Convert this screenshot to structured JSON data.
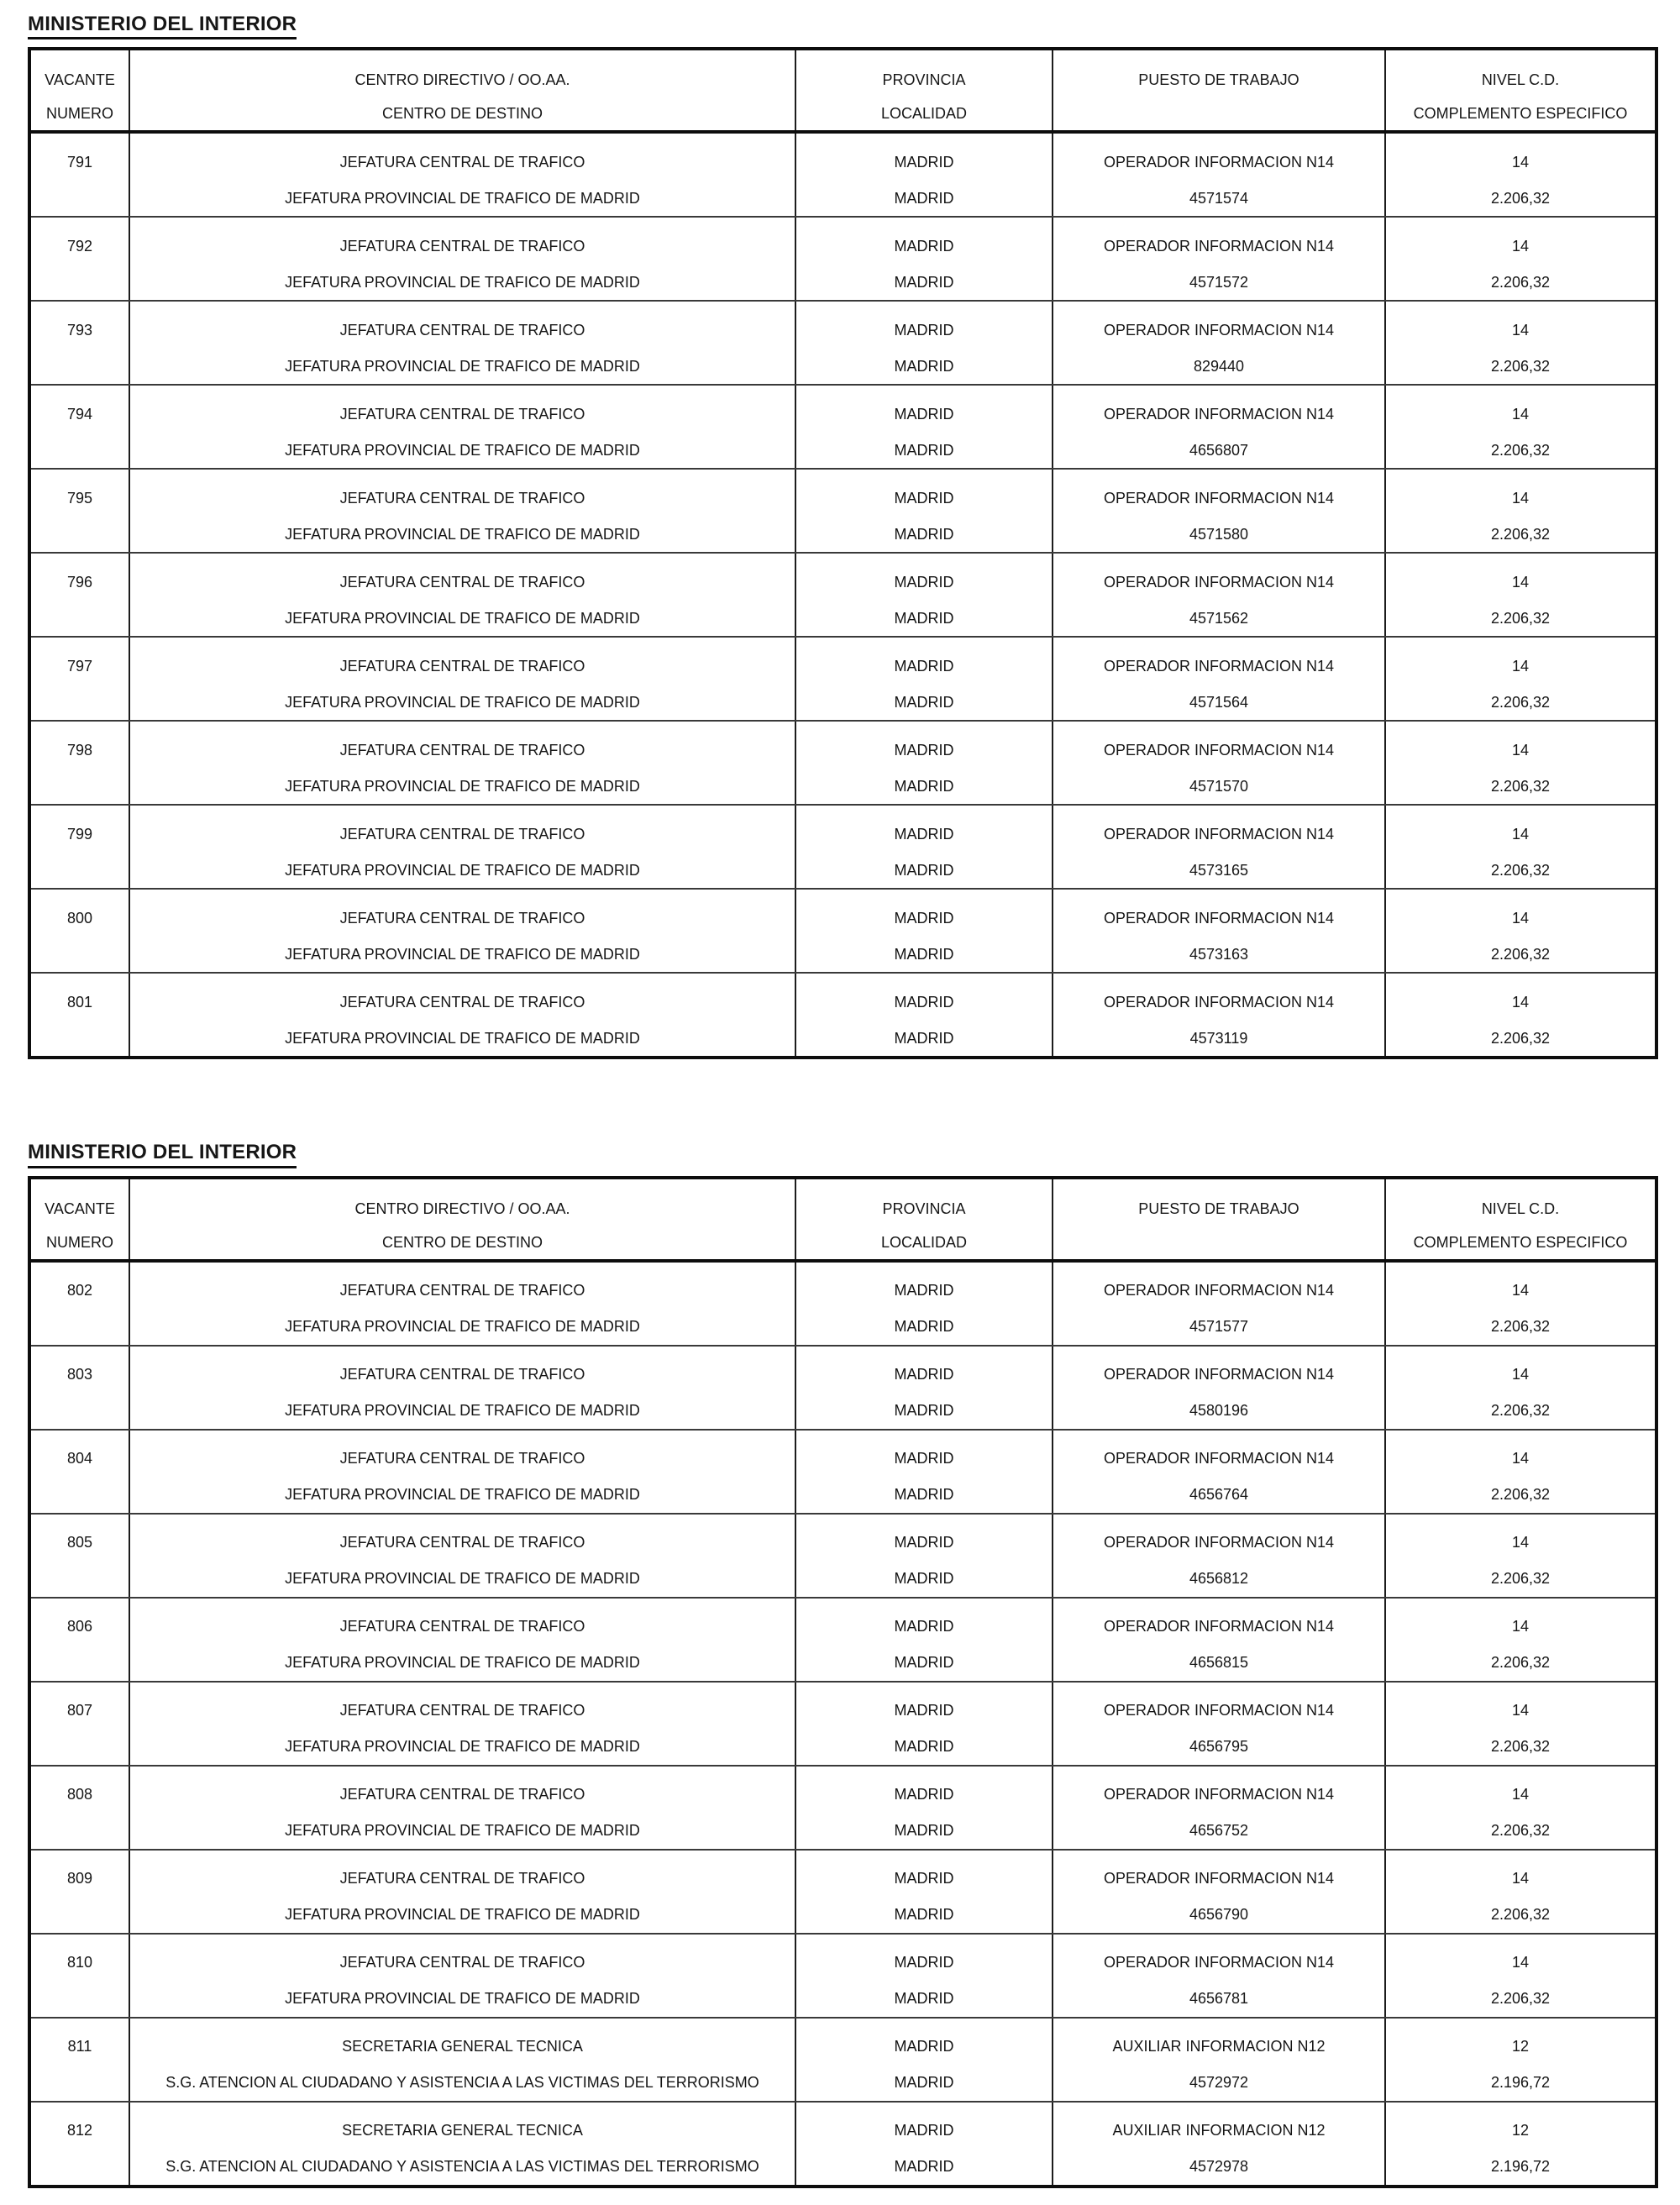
{
  "tables": [
    {
      "title": "MINISTERIO DEL INTERIOR",
      "headers": {
        "vacante_line1": "VACANTE",
        "vacante_line2": "NUMERO",
        "centro_line1": "CENTRO DIRECTIVO / OO.AA.",
        "centro_line2": "CENTRO DE DESTINO",
        "provincia_line1": "PROVINCIA",
        "provincia_line2": "LOCALIDAD",
        "puesto": "PUESTO DE TRABAJO",
        "nivel_line1": "NIVEL C.D.",
        "nivel_line2": "COMPLEMENTO ESPECIFICO"
      },
      "rows": [
        {
          "vacante": "791",
          "centro_directivo": "JEFATURA CENTRAL DE TRAFICO",
          "centro_destino": "JEFATURA PROVINCIAL DE TRAFICO DE MADRID",
          "provincia": "MADRID",
          "localidad": "MADRID",
          "puesto": "OPERADOR INFORMACION N14",
          "codigo": "4571574",
          "nivel": "14",
          "complemento": "2.206,32"
        },
        {
          "vacante": "792",
          "centro_directivo": "JEFATURA CENTRAL DE TRAFICO",
          "centro_destino": "JEFATURA PROVINCIAL DE TRAFICO DE MADRID",
          "provincia": "MADRID",
          "localidad": "MADRID",
          "puesto": "OPERADOR INFORMACION N14",
          "codigo": "4571572",
          "nivel": "14",
          "complemento": "2.206,32"
        },
        {
          "vacante": "793",
          "centro_directivo": "JEFATURA CENTRAL DE TRAFICO",
          "centro_destino": "JEFATURA PROVINCIAL DE TRAFICO DE MADRID",
          "provincia": "MADRID",
          "localidad": "MADRID",
          "puesto": "OPERADOR INFORMACION N14",
          "codigo": "829440",
          "nivel": "14",
          "complemento": "2.206,32"
        },
        {
          "vacante": "794",
          "centro_directivo": "JEFATURA CENTRAL DE TRAFICO",
          "centro_destino": "JEFATURA PROVINCIAL DE TRAFICO DE MADRID",
          "provincia": "MADRID",
          "localidad": "MADRID",
          "puesto": "OPERADOR INFORMACION N14",
          "codigo": "4656807",
          "nivel": "14",
          "complemento": "2.206,32"
        },
        {
          "vacante": "795",
          "centro_directivo": "JEFATURA CENTRAL DE TRAFICO",
          "centro_destino": "JEFATURA PROVINCIAL DE TRAFICO DE MADRID",
          "provincia": "MADRID",
          "localidad": "MADRID",
          "puesto": "OPERADOR INFORMACION N14",
          "codigo": "4571580",
          "nivel": "14",
          "complemento": "2.206,32"
        },
        {
          "vacante": "796",
          "centro_directivo": "JEFATURA CENTRAL DE TRAFICO",
          "centro_destino": "JEFATURA PROVINCIAL DE TRAFICO DE MADRID",
          "provincia": "MADRID",
          "localidad": "MADRID",
          "puesto": "OPERADOR INFORMACION N14",
          "codigo": "4571562",
          "nivel": "14",
          "complemento": "2.206,32"
        },
        {
          "vacante": "797",
          "centro_directivo": "JEFATURA CENTRAL DE TRAFICO",
          "centro_destino": "JEFATURA PROVINCIAL DE TRAFICO DE MADRID",
          "provincia": "MADRID",
          "localidad": "MADRID",
          "puesto": "OPERADOR INFORMACION N14",
          "codigo": "4571564",
          "nivel": "14",
          "complemento": "2.206,32"
        },
        {
          "vacante": "798",
          "centro_directivo": "JEFATURA CENTRAL DE TRAFICO",
          "centro_destino": "JEFATURA PROVINCIAL DE TRAFICO DE MADRID",
          "provincia": "MADRID",
          "localidad": "MADRID",
          "puesto": "OPERADOR INFORMACION N14",
          "codigo": "4571570",
          "nivel": "14",
          "complemento": "2.206,32"
        },
        {
          "vacante": "799",
          "centro_directivo": "JEFATURA CENTRAL DE TRAFICO",
          "centro_destino": "JEFATURA PROVINCIAL DE TRAFICO DE MADRID",
          "provincia": "MADRID",
          "localidad": "MADRID",
          "puesto": "OPERADOR INFORMACION N14",
          "codigo": "4573165",
          "nivel": "14",
          "complemento": "2.206,32"
        },
        {
          "vacante": "800",
          "centro_directivo": "JEFATURA CENTRAL DE TRAFICO",
          "centro_destino": "JEFATURA PROVINCIAL DE TRAFICO DE MADRID",
          "provincia": "MADRID",
          "localidad": "MADRID",
          "puesto": "OPERADOR INFORMACION N14",
          "codigo": "4573163",
          "nivel": "14",
          "complemento": "2.206,32"
        },
        {
          "vacante": "801",
          "centro_directivo": "JEFATURA CENTRAL DE TRAFICO",
          "centro_destino": "JEFATURA PROVINCIAL DE TRAFICO DE MADRID",
          "provincia": "MADRID",
          "localidad": "MADRID",
          "puesto": "OPERADOR INFORMACION N14",
          "codigo": "4573119",
          "nivel": "14",
          "complemento": "2.206,32"
        }
      ]
    },
    {
      "title": "MINISTERIO DEL INTERIOR",
      "headers": {
        "vacante_line1": "VACANTE",
        "vacante_line2": "NUMERO",
        "centro_line1": "CENTRO DIRECTIVO / OO.AA.",
        "centro_line2": "CENTRO DE DESTINO",
        "provincia_line1": "PROVINCIA",
        "provincia_line2": "LOCALIDAD",
        "puesto": "PUESTO DE TRABAJO",
        "nivel_line1": "NIVEL C.D.",
        "nivel_line2": "COMPLEMENTO ESPECIFICO"
      },
      "rows": [
        {
          "vacante": "802",
          "centro_directivo": "JEFATURA CENTRAL DE TRAFICO",
          "centro_destino": "JEFATURA PROVINCIAL DE TRAFICO DE MADRID",
          "provincia": "MADRID",
          "localidad": "MADRID",
          "puesto": "OPERADOR INFORMACION N14",
          "codigo": "4571577",
          "nivel": "14",
          "complemento": "2.206,32"
        },
        {
          "vacante": "803",
          "centro_directivo": "JEFATURA CENTRAL DE TRAFICO",
          "centro_destino": "JEFATURA PROVINCIAL DE TRAFICO DE MADRID",
          "provincia": "MADRID",
          "localidad": "MADRID",
          "puesto": "OPERADOR INFORMACION N14",
          "codigo": "4580196",
          "nivel": "14",
          "complemento": "2.206,32"
        },
        {
          "vacante": "804",
          "centro_directivo": "JEFATURA CENTRAL DE TRAFICO",
          "centro_destino": "JEFATURA PROVINCIAL DE TRAFICO DE MADRID",
          "provincia": "MADRID",
          "localidad": "MADRID",
          "puesto": "OPERADOR INFORMACION N14",
          "codigo": "4656764",
          "nivel": "14",
          "complemento": "2.206,32"
        },
        {
          "vacante": "805",
          "centro_directivo": "JEFATURA CENTRAL DE TRAFICO",
          "centro_destino": "JEFATURA PROVINCIAL DE TRAFICO DE MADRID",
          "provincia": "MADRID",
          "localidad": "MADRID",
          "puesto": "OPERADOR INFORMACION N14",
          "codigo": "4656812",
          "nivel": "14",
          "complemento": "2.206,32"
        },
        {
          "vacante": "806",
          "centro_directivo": "JEFATURA CENTRAL DE TRAFICO",
          "centro_destino": "JEFATURA PROVINCIAL DE TRAFICO DE MADRID",
          "provincia": "MADRID",
          "localidad": "MADRID",
          "puesto": "OPERADOR INFORMACION N14",
          "codigo": "4656815",
          "nivel": "14",
          "complemento": "2.206,32"
        },
        {
          "vacante": "807",
          "centro_directivo": "JEFATURA CENTRAL DE TRAFICO",
          "centro_destino": "JEFATURA PROVINCIAL DE TRAFICO DE MADRID",
          "provincia": "MADRID",
          "localidad": "MADRID",
          "puesto": "OPERADOR INFORMACION N14",
          "codigo": "4656795",
          "nivel": "14",
          "complemento": "2.206,32"
        },
        {
          "vacante": "808",
          "centro_directivo": "JEFATURA CENTRAL DE TRAFICO",
          "centro_destino": "JEFATURA PROVINCIAL DE TRAFICO DE MADRID",
          "provincia": "MADRID",
          "localidad": "MADRID",
          "puesto": "OPERADOR INFORMACION N14",
          "codigo": "4656752",
          "nivel": "14",
          "complemento": "2.206,32"
        },
        {
          "vacante": "809",
          "centro_directivo": "JEFATURA CENTRAL DE TRAFICO",
          "centro_destino": "JEFATURA PROVINCIAL DE TRAFICO DE MADRID",
          "provincia": "MADRID",
          "localidad": "MADRID",
          "puesto": "OPERADOR INFORMACION N14",
          "codigo": "4656790",
          "nivel": "14",
          "complemento": "2.206,32"
        },
        {
          "vacante": "810",
          "centro_directivo": "JEFATURA CENTRAL DE TRAFICO",
          "centro_destino": "JEFATURA PROVINCIAL DE TRAFICO DE MADRID",
          "provincia": "MADRID",
          "localidad": "MADRID",
          "puesto": "OPERADOR INFORMACION N14",
          "codigo": "4656781",
          "nivel": "14",
          "complemento": "2.206,32"
        },
        {
          "vacante": "811",
          "centro_directivo": "SECRETARIA GENERAL TECNICA",
          "centro_destino": "S.G. ATENCION AL CIUDADANO Y ASISTENCIA A LAS VICTIMAS DEL TERRORISMO",
          "provincia": "MADRID",
          "localidad": "MADRID",
          "puesto": "AUXILIAR INFORMACION N12",
          "codigo": "4572972",
          "nivel": "12",
          "complemento": "2.196,72"
        },
        {
          "vacante": "812",
          "centro_directivo": "SECRETARIA GENERAL TECNICA",
          "centro_destino": "S.G. ATENCION AL CIUDADANO Y ASISTENCIA A LAS VICTIMAS DEL TERRORISMO",
          "provincia": "MADRID",
          "localidad": "MADRID",
          "puesto": "AUXILIAR INFORMACION N12",
          "codigo": "4572978",
          "nivel": "12",
          "complemento": "2.196,72"
        }
      ]
    }
  ]
}
